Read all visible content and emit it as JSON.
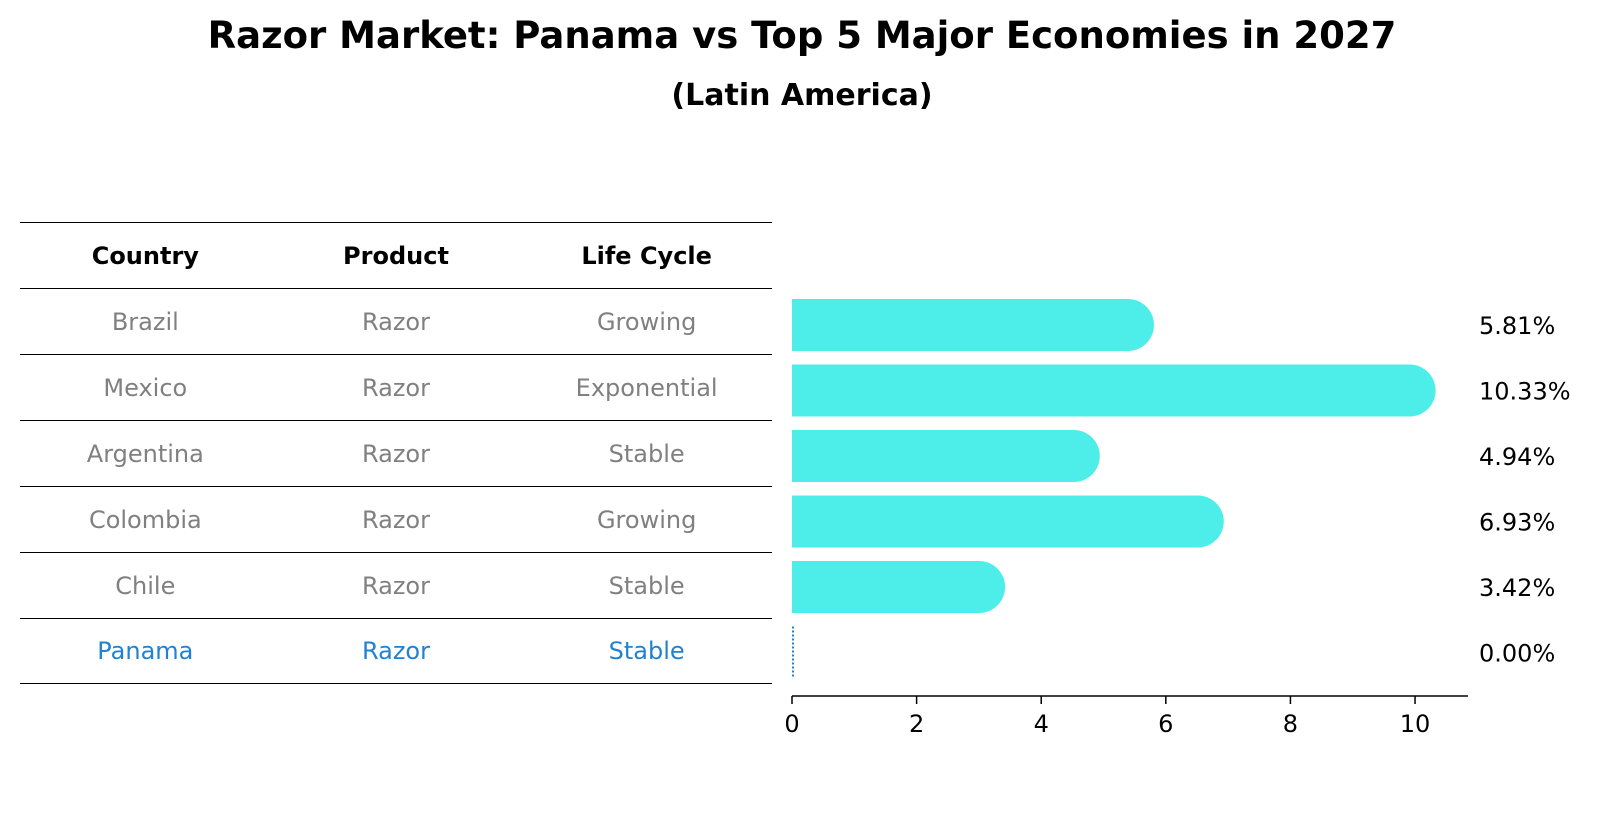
{
  "title": "Razor Market: Panama vs Top 5 Major Economies in 2027",
  "subtitle": "(Latin America)",
  "table": {
    "headers": [
      "Country",
      "Product",
      "Life Cycle"
    ],
    "rows": [
      [
        "Brazil",
        "Razor",
        "Growing"
      ],
      [
        "Mexico",
        "Razor",
        "Exponential"
      ],
      [
        "Argentina",
        "Razor",
        "Stable"
      ],
      [
        "Colombia",
        "Razor",
        "Growing"
      ],
      [
        "Chile",
        "Razor",
        "Stable"
      ],
      [
        "Panama",
        "Razor",
        "Stable"
      ]
    ],
    "highlight_row": "Panama"
  },
  "chart_data": {
    "type": "bar",
    "orientation": "horizontal",
    "categories": [
      "Brazil",
      "Mexico",
      "Argentina",
      "Colombia",
      "Chile",
      "Panama"
    ],
    "values": [
      5.81,
      10.33,
      4.94,
      6.93,
      3.42,
      0.0
    ],
    "data_labels": [
      "5.81%",
      "10.33%",
      "4.94%",
      "6.93%",
      "3.42%",
      "0.00%"
    ],
    "xticks": [
      0,
      2,
      4,
      6,
      8,
      10
    ],
    "xlim": [
      0,
      10.85
    ],
    "bar_color": "#4deeea",
    "highlight_color": "#1f82d2",
    "grid": false
  }
}
